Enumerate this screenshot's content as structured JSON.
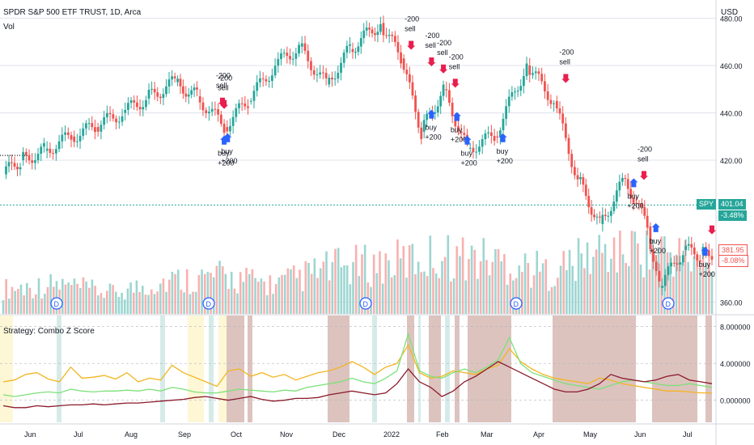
{
  "header": {
    "symbol_title": "SPDR S&P 500 ETF TRUST, 1D, Arca",
    "volume_label": "Vol",
    "currency": "USD"
  },
  "price_badges": {
    "current": {
      "symbol": "SPY",
      "price": "401.04",
      "change": "-3.48%",
      "color": "#26a69a"
    },
    "reference": {
      "price": "381.95",
      "change": "-8.08%",
      "color": "#ef5350"
    }
  },
  "strategy": {
    "title": "Strategy: Combo Z Score",
    "y_ticks": [
      "8.000000",
      "4.000000",
      "0.000000"
    ],
    "band_colors": {
      "sell_zone": "#d6b8b3",
      "buy_zone": "#cfe8e4",
      "neutral_zone": "#fdf6cf"
    }
  },
  "chart_data": {
    "type": "candlestick",
    "title": "SPDR S&P 500 ETF TRUST, 1D, Arca",
    "ylim": [
      355,
      486
    ],
    "y_ticks": [
      "480.00",
      "460.00",
      "440.00",
      "420.00",
      "360.00"
    ],
    "x_ticks": [
      "Jun",
      "Jul",
      "Aug",
      "Sep",
      "Oct",
      "Nov",
      "Dec",
      "2022",
      "Feb",
      "Mar",
      "Apr",
      "May",
      "Jun",
      "Jul"
    ],
    "dividend_marker": "D",
    "close_series": [
      {
        "x": "May 21",
        "y": 414
      },
      {
        "x": "Jun 1",
        "y": 420
      },
      {
        "x": "Jun 15",
        "y": 424
      },
      {
        "x": "Jul 1",
        "y": 430
      },
      {
        "x": "Jul 15",
        "y": 434
      },
      {
        "x": "Aug 1",
        "y": 440
      },
      {
        "x": "Aug 15",
        "y": 446
      },
      {
        "x": "Sep 2",
        "y": 453
      },
      {
        "x": "Sep 15",
        "y": 447
      },
      {
        "x": "Oct 1",
        "y": 434
      },
      {
        "x": "Oct 15",
        "y": 445
      },
      {
        "x": "Nov 1",
        "y": 460
      },
      {
        "x": "Nov 15",
        "y": 468
      },
      {
        "x": "Dec 1",
        "y": 452
      },
      {
        "x": "Dec 15",
        "y": 467
      },
      {
        "x": "Jan 3",
        "y": 478
      },
      {
        "x": "Jan 15",
        "y": 463
      },
      {
        "x": "Jan 27",
        "y": 432
      },
      {
        "x": "Feb 10",
        "y": 450
      },
      {
        "x": "Feb 24",
        "y": 425
      },
      {
        "x": "Mar 10",
        "y": 430
      },
      {
        "x": "Mar 29",
        "y": 460
      },
      {
        "x": "Apr 15",
        "y": 445
      },
      {
        "x": "Apr 29",
        "y": 412
      },
      {
        "x": "May 12",
        "y": 393
      },
      {
        "x": "May 27",
        "y": 412
      },
      {
        "x": "Jun 10",
        "y": 392
      },
      {
        "x": "Jun 17",
        "y": 366
      },
      {
        "x": "Jul 1",
        "y": 382
      },
      {
        "x": "Jul 11",
        "y": 380
      },
      {
        "x": "Jul 18",
        "y": 381
      }
    ],
    "volume_series": [
      {
        "x": "Jun",
        "v": 0.3
      },
      {
        "x": "Jul",
        "v": 0.35
      },
      {
        "x": "Aug",
        "v": 0.25
      },
      {
        "x": "Sep",
        "v": 0.4
      },
      {
        "x": "Oct",
        "v": 0.45
      },
      {
        "x": "Nov",
        "v": 0.35
      },
      {
        "x": "Dec",
        "v": 0.55
      },
      {
        "x": "Jan",
        "v": 0.6
      },
      {
        "x": "Feb",
        "v": 0.7
      },
      {
        "x": "Mar",
        "v": 0.65
      },
      {
        "x": "Apr",
        "v": 0.5
      },
      {
        "x": "May",
        "v": 0.75
      },
      {
        "x": "Jun",
        "v": 0.8
      },
      {
        "x": "Jul",
        "v": 0.55
      }
    ],
    "signals": [
      {
        "label": "-200 sell",
        "x": "Sep 30",
        "y": 443,
        "type": "sell"
      },
      {
        "label": "-200 sell",
        "x": "Oct 1",
        "y": 442,
        "type": "sell"
      },
      {
        "label": "buy +200",
        "x": "Oct 1",
        "y": 430,
        "type": "buy"
      },
      {
        "label": "buy +200",
        "x": "Oct 3",
        "y": 431,
        "type": "buy"
      },
      {
        "label": "-200 sell",
        "x": "Jan 21",
        "y": 467,
        "type": "sell"
      },
      {
        "label": "-200 sell",
        "x": "Feb 3",
        "y": 460,
        "type": "sell"
      },
      {
        "label": "-200 sell",
        "x": "Feb 10",
        "y": 457,
        "type": "sell"
      },
      {
        "label": "-200 sell",
        "x": "Feb 17",
        "y": 451,
        "type": "sell"
      },
      {
        "label": "buy +200",
        "x": "Feb 3",
        "y": 441,
        "type": "buy"
      },
      {
        "label": "buy +200",
        "x": "Feb 18",
        "y": 440,
        "type": "buy"
      },
      {
        "label": "buy +200",
        "x": "Feb 24",
        "y": 430,
        "type": "buy"
      },
      {
        "label": "buy +200",
        "x": "Mar 15",
        "y": 431,
        "type": "buy"
      },
      {
        "label": "-200 sell",
        "x": "Apr 22",
        "y": 453,
        "type": "sell"
      },
      {
        "label": "-200 sell",
        "x": "Jun 8",
        "y": 412,
        "type": "sell"
      },
      {
        "label": "buy +200",
        "x": "Jun 2",
        "y": 412,
        "type": "buy"
      },
      {
        "label": "buy +200",
        "x": "Jun 15",
        "y": 393,
        "type": "buy"
      },
      {
        "label": "sell",
        "x": "Jul 18",
        "y": 389,
        "type": "sell"
      },
      {
        "label": "buy +200",
        "x": "Jul 14",
        "y": 383,
        "type": "buy"
      }
    ],
    "z_series": [
      {
        "name": "",
        "color": "#f2b521",
        "values": [
          2.0,
          2.2,
          2.8,
          3.0,
          2.3,
          2.0,
          3.6,
          2.4,
          2.5,
          2.7,
          2.3,
          3.0,
          2.0,
          2.4,
          2.2,
          3.8,
          3.0,
          2.5,
          2.0,
          1.5,
          3.2,
          3.4,
          2.6,
          3.0,
          2.5,
          2.8,
          2.2,
          2.6,
          3.0,
          3.2,
          3.6,
          4.2,
          3.6,
          2.8,
          3.6,
          4.0,
          6.0,
          3.0,
          2.4,
          2.6,
          3.2,
          3.0,
          2.8,
          3.4,
          3.8,
          5.6,
          4.2,
          3.4,
          2.8,
          2.4,
          2.2,
          2.0,
          1.8,
          2.4,
          2.2,
          1.8,
          1.6,
          1.4,
          1.2,
          1.0,
          1.0,
          0.9,
          0.8,
          0.8
        ]
      },
      {
        "name": "",
        "color": "#7ee07a",
        "values": [
          0.6,
          0.4,
          0.6,
          0.8,
          0.9,
          0.8,
          1.2,
          1.0,
          0.9,
          1.0,
          1.0,
          1.1,
          1.0,
          1.2,
          1.0,
          1.4,
          1.2,
          0.9,
          0.8,
          0.8,
          1.0,
          1.2,
          1.1,
          1.0,
          0.9,
          1.1,
          1.0,
          1.4,
          1.6,
          1.8,
          2.0,
          2.4,
          2.0,
          1.8,
          2.4,
          3.2,
          7.2,
          3.2,
          2.6,
          2.4,
          3.0,
          3.4,
          3.0,
          3.6,
          4.4,
          6.8,
          4.0,
          3.0,
          2.6,
          2.2,
          1.8,
          1.6,
          1.4,
          1.2,
          1.6,
          2.0,
          2.2,
          2.0,
          1.8,
          1.6,
          1.6,
          1.8,
          1.6,
          1.4
        ]
      },
      {
        "name": "",
        "color": "#8b1a2b",
        "values": [
          -0.6,
          -0.8,
          -0.8,
          -0.6,
          -0.7,
          -0.6,
          -0.5,
          -0.5,
          -0.4,
          -0.5,
          -0.4,
          -0.3,
          -0.3,
          -0.2,
          -0.1,
          0.0,
          0.1,
          0.3,
          0.4,
          0.2,
          0.0,
          0.2,
          0.4,
          0.1,
          -0.1,
          0.0,
          0.2,
          0.2,
          0.3,
          0.6,
          0.8,
          1.0,
          0.8,
          0.6,
          0.8,
          1.8,
          3.4,
          2.0,
          1.4,
          0.4,
          1.0,
          2.0,
          2.6,
          3.4,
          4.2,
          3.6,
          3.0,
          2.4,
          1.8,
          1.2,
          0.9,
          0.9,
          1.2,
          1.8,
          2.8,
          2.4,
          2.2,
          2.0,
          2.2,
          2.6,
          2.8,
          2.2,
          2.0,
          1.8
        ]
      }
    ]
  }
}
